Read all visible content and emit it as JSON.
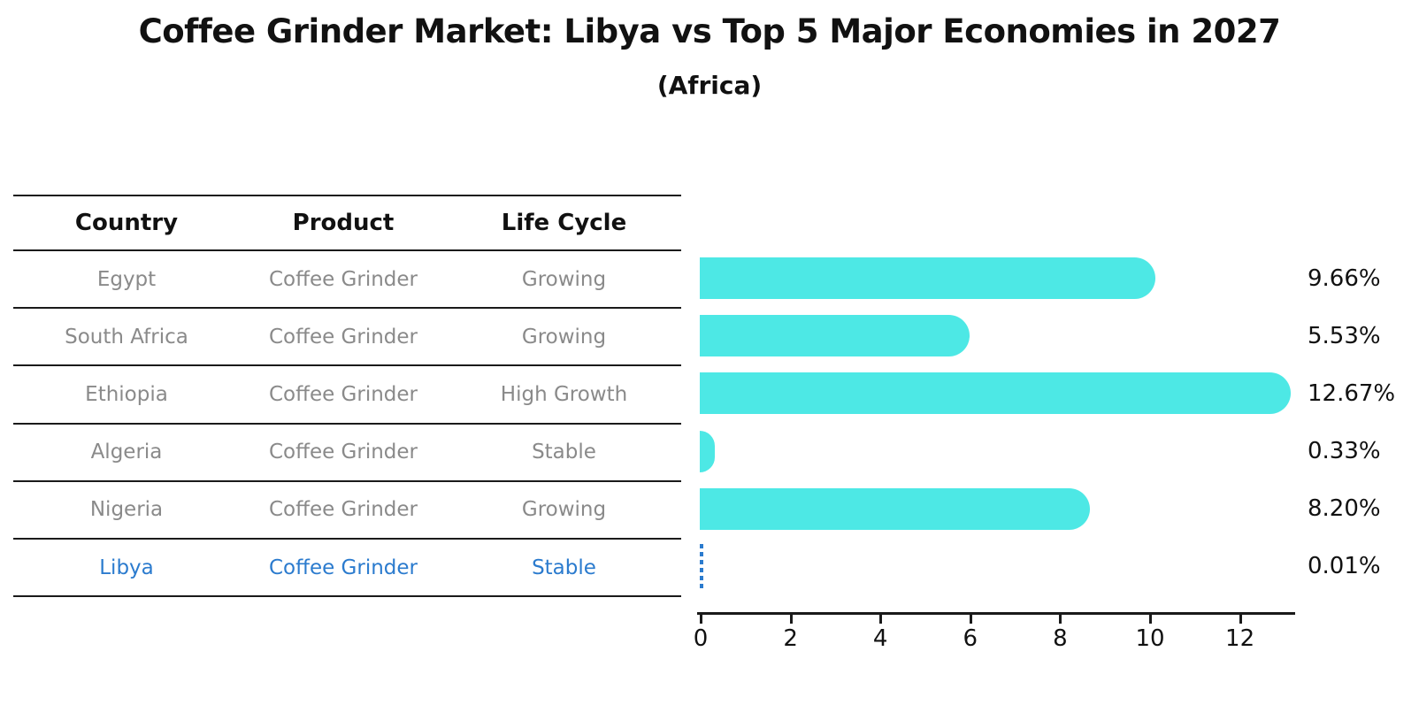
{
  "header": {
    "title": "Coffee Grinder Market: Libya vs Top 5 Major Economies in 2027",
    "subtitle": "(Africa)"
  },
  "table": {
    "columns": [
      "Country",
      "Product",
      "Life Cycle"
    ],
    "rows": [
      {
        "country": "Egypt",
        "product": "Coffee Grinder",
        "life_cycle": "Growing",
        "highlight": false
      },
      {
        "country": "South Africa",
        "product": "Coffee Grinder",
        "life_cycle": "Growing",
        "highlight": false
      },
      {
        "country": "Ethiopia",
        "product": "Coffee Grinder",
        "life_cycle": "High Growth",
        "highlight": false
      },
      {
        "country": "Algeria",
        "product": "Coffee Grinder",
        "life_cycle": "Stable",
        "highlight": false
      },
      {
        "country": "Nigeria",
        "product": "Coffee Grinder",
        "life_cycle": "Growing",
        "highlight": false
      },
      {
        "country": "Libya",
        "product": "Coffee Grinder",
        "life_cycle": "Stable",
        "highlight": true
      }
    ]
  },
  "chart_data": {
    "type": "bar",
    "orientation": "horizontal",
    "title": "Coffee Grinder Market: Libya vs Top 5 Major Economies in 2027",
    "subtitle": "(Africa)",
    "categories": [
      "Egypt",
      "South Africa",
      "Ethiopia",
      "Algeria",
      "Nigeria",
      "Libya"
    ],
    "values": [
      9.66,
      5.53,
      12.67,
      0.33,
      8.2,
      0.01
    ],
    "display_values": [
      "9.66%",
      "5.53%",
      "12.67%",
      "0.33%",
      "8.20%",
      "0.01%"
    ],
    "unit": "%",
    "x_ticks": [
      0,
      2,
      4,
      6,
      8,
      10,
      12
    ],
    "xlim": [
      0,
      13.3
    ],
    "grid": false,
    "legend": false,
    "highlight_category": "Libya",
    "highlight_style": "dashed-outline-bar"
  },
  "colors": {
    "bar": "#4DE8E5",
    "highlight": "#2B7BCE",
    "text_strong": "#111111",
    "text_muted": "#8a8a8a",
    "line": "#1a1a1a",
    "background": "#ffffff"
  }
}
